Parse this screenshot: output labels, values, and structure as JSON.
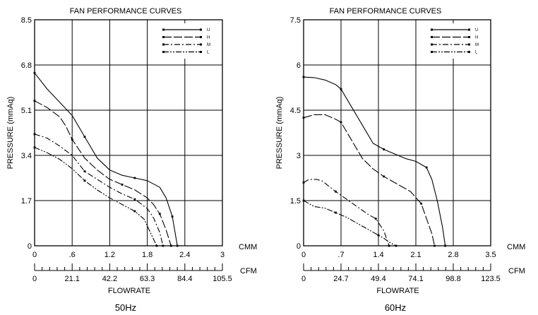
{
  "chart_data": [
    {
      "type": "line",
      "title": "FAN PERFORMANCE CURVES",
      "caption": "50Hz",
      "ylabel": "PRESSURE  (mmAq)",
      "xlabel": "FLOWRATE",
      "ylim": [
        0,
        8.5
      ],
      "xlim": [
        0,
        3
      ],
      "y_ticks": [
        "0",
        "1.7",
        "3.4",
        "5.1",
        "6.8",
        "8.5"
      ],
      "x_ticks_cmm": [
        "0",
        ".6",
        "1.2",
        "1.8",
        "2.4",
        "3"
      ],
      "x_ticks_cfm": [
        "0",
        "21.1",
        "42.2",
        "63.3",
        "84.4",
        "105.5"
      ],
      "x_unit_top": "CMM",
      "x_unit_bottom": "CFM",
      "x_unit_top_label_value": 0,
      "legend_position": "top-right",
      "grid": true,
      "series": [
        {
          "name": "U",
          "style": "solid",
          "x": [
            0,
            0.2,
            0.4,
            0.6,
            0.8,
            1.0,
            1.2,
            1.4,
            1.6,
            1.8,
            2.0,
            2.1,
            2.2,
            2.28
          ],
          "y": [
            6.5,
            5.9,
            5.4,
            4.9,
            4.1,
            3.3,
            2.85,
            2.65,
            2.55,
            2.45,
            2.2,
            1.8,
            1.1,
            0
          ]
        },
        {
          "name": "H",
          "style": "long-dash",
          "x": [
            0,
            0.2,
            0.4,
            0.5,
            0.6,
            0.8,
            1.0,
            1.2,
            1.4,
            1.6,
            1.8,
            1.9,
            2.0,
            2.1,
            2.18
          ],
          "y": [
            5.45,
            5.2,
            4.85,
            4.5,
            4.0,
            3.3,
            2.85,
            2.5,
            2.3,
            2.1,
            1.8,
            1.55,
            1.2,
            0.6,
            0
          ]
        },
        {
          "name": "M",
          "style": "dash-dot",
          "x": [
            0,
            0.2,
            0.4,
            0.6,
            0.8,
            1.0,
            1.2,
            1.4,
            1.6,
            1.8,
            1.9,
            2.0,
            2.05
          ],
          "y": [
            4.2,
            4.05,
            3.75,
            3.4,
            2.8,
            2.5,
            2.2,
            1.95,
            1.75,
            1.4,
            1.05,
            0.5,
            0
          ]
        },
        {
          "name": "L",
          "style": "dash-dot-dot",
          "x": [
            0,
            0.2,
            0.4,
            0.6,
            0.8,
            1.0,
            1.2,
            1.4,
            1.6,
            1.75,
            1.85,
            1.95
          ],
          "y": [
            3.7,
            3.5,
            3.25,
            2.9,
            2.45,
            2.1,
            1.8,
            1.55,
            1.3,
            1.0,
            0.5,
            0
          ]
        }
      ]
    },
    {
      "type": "line",
      "title": "FAN PERFORMANCE CURVES",
      "caption": "60Hz",
      "ylabel": "PRESSURE  (mmAq)",
      "xlabel": "FLOWRATE",
      "ylim": [
        0,
        7.5
      ],
      "xlim": [
        0,
        3.5
      ],
      "y_ticks": [
        "0",
        "1.5",
        "3",
        "4.5",
        "6",
        "7.5"
      ],
      "x_ticks_cmm": [
        "0",
        ".7",
        "1.4",
        "2.1",
        "2.8",
        "3.5"
      ],
      "x_ticks_cfm": [
        "0",
        "24.7",
        "49.4",
        "74.1",
        "98.8",
        "123.5"
      ],
      "x_unit_top": "CMM",
      "x_unit_bottom": "CFM",
      "legend_position": "top-right",
      "grid": true,
      "series": [
        {
          "name": "U",
          "style": "solid",
          "x": [
            0,
            0.2,
            0.4,
            0.6,
            0.7,
            0.9,
            1.1,
            1.3,
            1.5,
            1.7,
            1.9,
            2.1,
            2.3,
            2.4,
            2.5,
            2.6,
            2.65
          ],
          "y": [
            5.6,
            5.58,
            5.5,
            5.35,
            5.2,
            4.6,
            4.0,
            3.4,
            3.2,
            3.05,
            2.9,
            2.8,
            2.6,
            2.2,
            1.5,
            0.6,
            0
          ]
        },
        {
          "name": "H",
          "style": "long-dash",
          "x": [
            0,
            0.2,
            0.4,
            0.6,
            0.7,
            0.9,
            1.1,
            1.3,
            1.5,
            1.7,
            1.9,
            2.0,
            2.2,
            2.3,
            2.4,
            2.45
          ],
          "y": [
            4.25,
            4.35,
            4.35,
            4.2,
            4.1,
            3.5,
            2.9,
            2.55,
            2.3,
            2.1,
            1.9,
            1.8,
            1.4,
            0.9,
            0.4,
            0
          ]
        },
        {
          "name": "M",
          "style": "dash-dot",
          "x": [
            0,
            0.1,
            0.25,
            0.35,
            0.6,
            0.8,
            1.0,
            1.2,
            1.35,
            1.5,
            1.6
          ],
          "y": [
            2.1,
            2.2,
            2.2,
            2.15,
            1.8,
            1.55,
            1.3,
            1.05,
            0.9,
            0.5,
            0
          ]
        },
        {
          "name": "L",
          "style": "dash-dot-dot",
          "x": [
            0,
            0.1,
            0.2,
            0.4,
            0.6,
            0.8,
            1.0,
            1.2,
            1.4,
            1.5,
            1.6,
            1.73
          ],
          "y": [
            1.5,
            1.4,
            1.3,
            1.25,
            1.1,
            0.95,
            0.75,
            0.55,
            0.35,
            0.25,
            0.12,
            0
          ]
        }
      ]
    }
  ]
}
